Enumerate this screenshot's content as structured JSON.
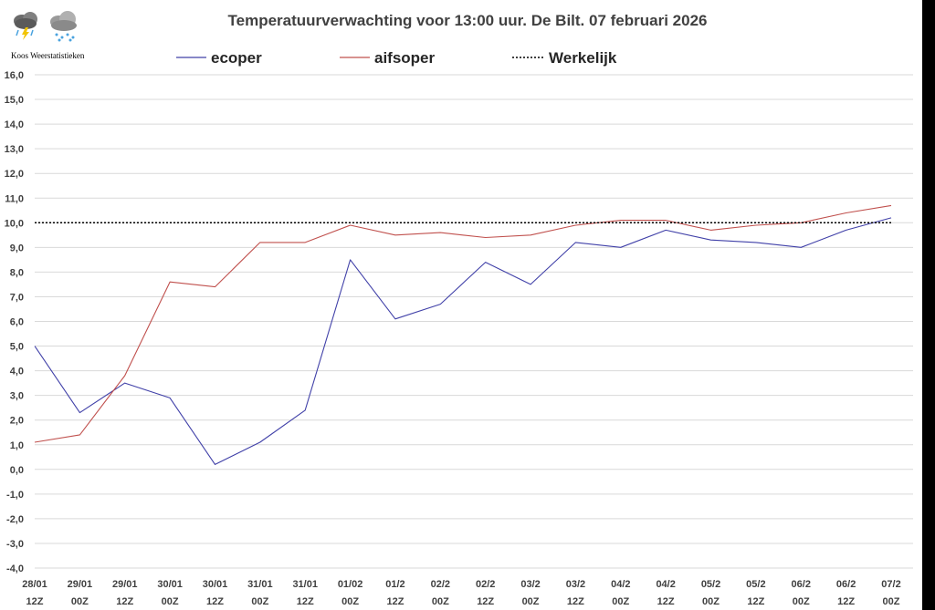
{
  "brand": "Koos Weerstatistieken",
  "icons": [
    "thunderstorm-cloud-icon",
    "rain-cloud-icon"
  ],
  "chart_data": {
    "type": "line",
    "title": "Temperatuurverwachting voor 13:00 uur. De Bilt. 07 februari 2026",
    "ylim": [
      -4,
      16
    ],
    "ytick_step": 1,
    "ytick_format": "decimal-comma-1",
    "categories": [
      [
        "28/01",
        "12Z"
      ],
      [
        "29/01",
        "00Z"
      ],
      [
        "29/01",
        "12Z"
      ],
      [
        "30/01",
        "00Z"
      ],
      [
        "30/01",
        "12Z"
      ],
      [
        "31/01",
        "00Z"
      ],
      [
        "31/01",
        "12Z"
      ],
      [
        "01/02",
        "00Z"
      ],
      [
        "01/2",
        "12Z"
      ],
      [
        "02/2",
        "00Z"
      ],
      [
        "02/2",
        "12Z"
      ],
      [
        "03/2",
        "00Z"
      ],
      [
        "03/2",
        "12Z"
      ],
      [
        "04/2",
        "00Z"
      ],
      [
        "04/2",
        "12Z"
      ],
      [
        "05/2",
        "00Z"
      ],
      [
        "05/2",
        "12Z"
      ],
      [
        "06/2",
        "00Z"
      ],
      [
        "06/2",
        "12Z"
      ],
      [
        "07/2",
        "00Z"
      ]
    ],
    "series": [
      {
        "name": "ecoper",
        "color": "#4040a8",
        "style": "solid",
        "values": [
          5.0,
          2.3,
          3.5,
          2.9,
          0.2,
          1.1,
          2.4,
          8.5,
          6.1,
          6.7,
          8.4,
          7.5,
          9.2,
          9.0,
          9.7,
          9.3,
          9.2,
          9.0,
          9.7,
          10.2
        ]
      },
      {
        "name": "aifsoper",
        "color": "#c0504d",
        "style": "solid",
        "values": [
          1.1,
          1.4,
          3.8,
          7.6,
          7.4,
          9.2,
          9.2,
          9.9,
          9.5,
          9.6,
          9.4,
          9.5,
          9.9,
          10.1,
          10.1,
          9.7,
          9.9,
          10.0,
          10.4,
          10.7
        ]
      },
      {
        "name": "Werkelijk",
        "color": "#000000",
        "style": "dotted",
        "values": [
          10.0,
          10.0,
          10.0,
          10.0,
          10.0,
          10.0,
          10.0,
          10.0,
          10.0,
          10.0,
          10.0,
          10.0,
          10.0,
          10.0,
          10.0,
          10.0,
          10.0,
          10.0,
          10.0,
          10.0
        ]
      }
    ],
    "legend": "top"
  }
}
